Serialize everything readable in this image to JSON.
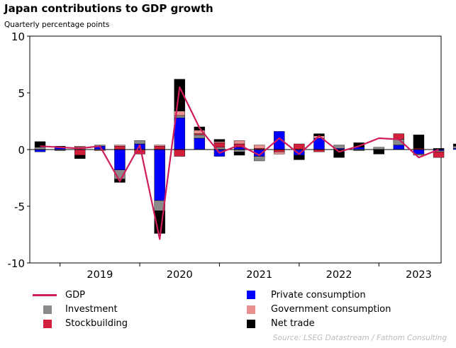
{
  "colors": {
    "gdp": "#d01c5a",
    "investment": "#8a8a8a",
    "stockbuilding": "#d21f3c",
    "private": "#0000ff",
    "government": "#e8908f",
    "nettrade": "#000000"
  },
  "source": "Source: LSEG Datastream / Fathom Consulting",
  "chart_data": {
    "type": "bar",
    "stacked": true,
    "title": "Japan contributions to GDP growth",
    "subtitle": "Quarterly percentage points",
    "ylabel": "",
    "xlabel": "",
    "ylim": [
      -10,
      10
    ],
    "yticks": [
      10,
      5,
      0,
      -5,
      -10
    ],
    "ytick_labels": [
      "10",
      "5",
      "0",
      "-5",
      "-10"
    ],
    "year_labels": [
      "2019",
      "2020",
      "2021",
      "2022",
      "2023"
    ],
    "categories": [
      "2018 Q3",
      "2018 Q4",
      "2019 Q1",
      "2019 Q2",
      "2019 Q3",
      "2019 Q4",
      "2020 Q1",
      "2020 Q2",
      "2020 Q3",
      "2020 Q4",
      "2021 Q1",
      "2021 Q2",
      "2021 Q3",
      "2021 Q4",
      "2022 Q1",
      "2022 Q2",
      "2022 Q3",
      "2022 Q4",
      "2023 Q1",
      "2023 Q2",
      "2023 Q3",
      "2023 Q4",
      "2024 Q1"
    ],
    "series": [
      {
        "name": "Private consumption",
        "key": "private",
        "values": [
          -0.2,
          0.2,
          0.0,
          0.3,
          -1.8,
          0.5,
          -4.5,
          2.8,
          1.0,
          -0.6,
          0.2,
          -0.6,
          1.6,
          -0.5,
          1.0,
          0.1,
          0.2,
          0.0,
          0.4,
          -0.4,
          -0.1,
          0.1,
          0.0
        ]
      },
      {
        "name": "Investment",
        "key": "investment",
        "values": [
          0.2,
          -0.1,
          0.2,
          0.1,
          -0.8,
          0.3,
          -0.9,
          0.2,
          0.3,
          0.2,
          -0.2,
          -0.4,
          0.0,
          0.0,
          0.0,
          0.3,
          -0.1,
          0.2,
          0.5,
          -0.1,
          -0.1,
          0.2,
          0.0
        ]
      },
      {
        "name": "Stockbuilding",
        "key": "stockbuilding",
        "values": [
          0.0,
          0.0,
          -0.5,
          0.0,
          0.3,
          -0.4,
          0.3,
          -0.6,
          0.1,
          0.4,
          0.3,
          0.1,
          -0.2,
          0.5,
          -0.2,
          0.0,
          0.0,
          0.0,
          0.5,
          0.1,
          -0.5,
          0.0,
          0.0
        ]
      },
      {
        "name": "Government consumption",
        "key": "government",
        "values": [
          0.0,
          0.0,
          0.1,
          -0.1,
          0.1,
          0.0,
          0.1,
          0.4,
          0.3,
          0.1,
          0.3,
          0.3,
          -0.2,
          0.0,
          0.2,
          0.0,
          0.0,
          0.0,
          0.0,
          0.0,
          0.0,
          0.0,
          0.0
        ]
      },
      {
        "name": "Net trade",
        "key": "nettrade",
        "values": [
          0.5,
          0.1,
          -0.3,
          0.0,
          -0.3,
          0.0,
          -2.0,
          2.8,
          0.3,
          0.2,
          -0.3,
          0.0,
          0.0,
          -0.4,
          0.2,
          -0.7,
          0.4,
          -0.4,
          0.0,
          1.2,
          0.1,
          0.2,
          0.0
        ]
      }
    ],
    "line": {
      "name": "GDP",
      "key": "gdp",
      "values": [
        0.3,
        0.2,
        0.1,
        0.3,
        -2.8,
        0.4,
        -7.9,
        5.5,
        1.9,
        -0.3,
        0.4,
        -0.5,
        1.0,
        -0.4,
        1.2,
        -0.2,
        0.3,
        1.0,
        0.9,
        -0.7,
        0.0,
        0.0,
        0.0
      ]
    },
    "legend": {
      "placement": "bottom",
      "items": [
        {
          "key": "gdp",
          "label": "GDP",
          "kind": "line"
        },
        {
          "key": "private",
          "label": "Private consumption",
          "kind": "box"
        },
        {
          "key": "investment",
          "label": "Investment",
          "kind": "box"
        },
        {
          "key": "government",
          "label": "Government consumption",
          "kind": "box"
        },
        {
          "key": "stockbuilding",
          "label": "Stockbuilding",
          "kind": "box"
        },
        {
          "key": "nettrade",
          "label": "Net trade",
          "kind": "box"
        }
      ]
    }
  }
}
